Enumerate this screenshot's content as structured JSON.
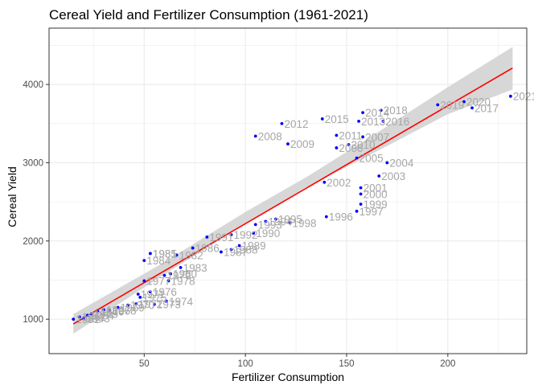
{
  "chart_data": {
    "type": "scatter",
    "title": "Cereal Yield and Fertilizer Consumption (1961-2021)",
    "xlabel": "Fertilizer Consumption",
    "ylabel": "Cereal Yield",
    "xlim": [
      3,
      239
    ],
    "ylim": [
      560,
      4720
    ],
    "xticks": [
      50,
      100,
      150,
      200
    ],
    "yticks": [
      1000,
      2000,
      3000,
      4000
    ],
    "grid": true,
    "colors": {
      "points": "#0000ff",
      "fit_line": "#ff0000",
      "confidence_band": "#d3d3d3",
      "labels": "#a6a6a6",
      "border": "#333333",
      "grid": "#ebebeb"
    },
    "points": [
      {
        "label": "1961",
        "x": 15,
        "y": 1000
      },
      {
        "label": "1962",
        "x": 18,
        "y": 1030
      },
      {
        "label": "1963",
        "x": 20,
        "y": 1010
      },
      {
        "label": "1964",
        "x": 22,
        "y": 1050
      },
      {
        "label": "1965",
        "x": 24,
        "y": 1070
      },
      {
        "label": "1966",
        "x": 27,
        "y": 1100
      },
      {
        "label": "1967",
        "x": 30,
        "y": 1120
      },
      {
        "label": "1968",
        "x": 33,
        "y": 1110
      },
      {
        "label": "1969",
        "x": 37,
        "y": 1150
      },
      {
        "label": "1970",
        "x": 42,
        "y": 1180
      },
      {
        "label": "1971",
        "x": 47,
        "y": 1320
      },
      {
        "label": "1972",
        "x": 46,
        "y": 1195
      },
      {
        "label": "1973",
        "x": 55,
        "y": 1190
      },
      {
        "label": "1974",
        "x": 61,
        "y": 1230
      },
      {
        "label": "1975",
        "x": 48,
        "y": 1280
      },
      {
        "label": "1976",
        "x": 53,
        "y": 1350
      },
      {
        "label": "1977",
        "x": 50,
        "y": 1490
      },
      {
        "label": "1978",
        "x": 62,
        "y": 1490
      },
      {
        "label": "1979",
        "x": 60,
        "y": 1560
      },
      {
        "label": "1980",
        "x": 63,
        "y": 1580
      },
      {
        "label": "1981",
        "x": 53,
        "y": 1840
      },
      {
        "label": "1982",
        "x": 66,
        "y": 1820
      },
      {
        "label": "1983",
        "x": 68,
        "y": 1660
      },
      {
        "label": "1984",
        "x": 50,
        "y": 1750
      },
      {
        "label": "1985",
        "x": 53,
        "y": 1840
      },
      {
        "label": "1986",
        "x": 74,
        "y": 1910
      },
      {
        "label": "1987",
        "x": 88,
        "y": 1860
      },
      {
        "label": "1988",
        "x": 93,
        "y": 1890
      },
      {
        "label": "1989",
        "x": 97,
        "y": 1940
      },
      {
        "label": "1990",
        "x": 104,
        "y": 2100
      },
      {
        "label": "1991",
        "x": 81,
        "y": 2050
      },
      {
        "label": "1992",
        "x": 93,
        "y": 2080
      },
      {
        "label": "1993",
        "x": 105,
        "y": 2210
      },
      {
        "label": "1994",
        "x": 110,
        "y": 2250
      },
      {
        "label": "1995",
        "x": 115,
        "y": 2280
      },
      {
        "label": "1996",
        "x": 140,
        "y": 2310
      },
      {
        "label": "1997",
        "x": 155,
        "y": 2380
      },
      {
        "label": "1998",
        "x": 122,
        "y": 2230
      },
      {
        "label": "1999",
        "x": 157,
        "y": 2470
      },
      {
        "label": "2000",
        "x": 157,
        "y": 2600
      },
      {
        "label": "2001",
        "x": 157,
        "y": 2680
      },
      {
        "label": "2002",
        "x": 139,
        "y": 2750
      },
      {
        "label": "2003",
        "x": 166,
        "y": 2830
      },
      {
        "label": "2004",
        "x": 170,
        "y": 3000
      },
      {
        "label": "2005",
        "x": 155,
        "y": 3060
      },
      {
        "label": "2006",
        "x": 145,
        "y": 3190
      },
      {
        "label": "2007",
        "x": 158,
        "y": 3330
      },
      {
        "label": "2008",
        "x": 105,
        "y": 3340
      },
      {
        "label": "2009",
        "x": 121,
        "y": 3240
      },
      {
        "label": "2010",
        "x": 151,
        "y": 3230
      },
      {
        "label": "2011",
        "x": 145,
        "y": 3350
      },
      {
        "label": "2012",
        "x": 118,
        "y": 3500
      },
      {
        "label": "2013",
        "x": 156,
        "y": 3530
      },
      {
        "label": "2014",
        "x": 158,
        "y": 3640
      },
      {
        "label": "2015",
        "x": 138,
        "y": 3560
      },
      {
        "label": "2016",
        "x": 168,
        "y": 3530
      },
      {
        "label": "2017",
        "x": 212,
        "y": 3700
      },
      {
        "label": "2018",
        "x": 167,
        "y": 3670
      },
      {
        "label": "2019",
        "x": 195,
        "y": 3740
      },
      {
        "label": "2020",
        "x": 208,
        "y": 3780
      },
      {
        "label": "2021",
        "x": 231,
        "y": 3850
      }
    ],
    "fit_line": {
      "x": [
        15,
        232
      ],
      "y": [
        940,
        4210
      ]
    },
    "confidence_band": {
      "x": [
        15,
        58,
        100,
        131,
        160,
        200,
        232
      ],
      "lower": [
        815,
        1540,
        2220,
        2700,
        3080,
        3620,
        3935
      ],
      "upper": [
        1065,
        1700,
        2370,
        2830,
        3300,
        3965,
        4480
      ]
    }
  }
}
